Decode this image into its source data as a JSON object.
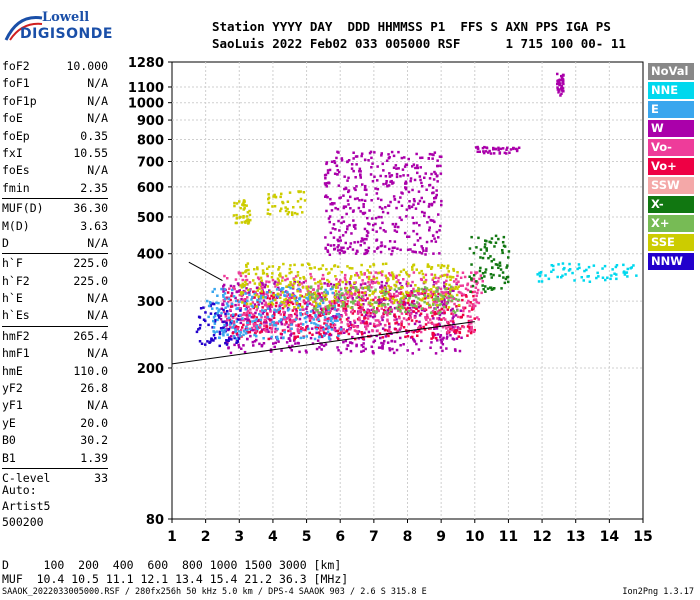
{
  "logo": {
    "line1": "Lowell",
    "line2": "DIGISONDE"
  },
  "header": {
    "line1": "Station YYYY DAY  DDD HHMMSS P1  FFS S AXN PPS IGA PS",
    "line2": "SaoLuis 2022 Feb02 033 005000 RSF      1 715 100 00- 11"
  },
  "params": {
    "group1": [
      {
        "label": "foF2",
        "value": "10.000"
      },
      {
        "label": "foF1",
        "value": "N/A"
      },
      {
        "label": "foF1p",
        "value": "N/A"
      },
      {
        "label": "foE",
        "value": "N/A"
      },
      {
        "label": "foEp",
        "value": "0.35"
      },
      {
        "label": "fxI",
        "value": "10.55"
      },
      {
        "label": "foEs",
        "value": "N/A"
      },
      {
        "label": "fmin",
        "value": "2.35"
      }
    ],
    "group2": [
      {
        "label": "MUF(D)",
        "value": "36.30"
      },
      {
        "label": "M(D)",
        "value": "3.63"
      },
      {
        "label": "D",
        "value": "N/A"
      }
    ],
    "group3": [
      {
        "label": "h`F",
        "value": "225.0"
      },
      {
        "label": "h`F2",
        "value": "225.0"
      },
      {
        "label": "h`E",
        "value": "N/A"
      },
      {
        "label": "h`Es",
        "value": "N/A"
      }
    ],
    "group4": [
      {
        "label": "hmF2",
        "value": "265.4"
      },
      {
        "label": "hmF1",
        "value": "N/A"
      },
      {
        "label": "hmE",
        "value": "110.0"
      },
      {
        "label": "yF2",
        "value": "26.8"
      },
      {
        "label": "yF1",
        "value": "N/A"
      },
      {
        "label": "yE",
        "value": "20.0"
      },
      {
        "label": "B0",
        "value": "30.2"
      },
      {
        "label": "B1",
        "value": "1.39"
      }
    ],
    "group5": [
      {
        "label": "C-level",
        "value": "33"
      }
    ]
  },
  "auto": {
    "line1": "Auto:",
    "line2": "Artist5",
    "line3": "500200"
  },
  "legend": [
    {
      "label": "NoVal",
      "color": "#888888"
    },
    {
      "label": "NNE",
      "color": "#00d8ee"
    },
    {
      "label": "E",
      "color": "#3aa6ee"
    },
    {
      "label": "W",
      "color": "#aa00aa"
    },
    {
      "label": "Vo-",
      "color": "#ee3c9a"
    },
    {
      "label": "Vo+",
      "color": "#ee0044"
    },
    {
      "label": "SSW",
      "color": "#f4a8a8"
    },
    {
      "label": "X-",
      "color": "#117711"
    },
    {
      "label": "X+",
      "color": "#77bb55"
    },
    {
      "label": "SSE",
      "color": "#cccc00"
    },
    {
      "label": "NNW",
      "color": "#2200cc"
    }
  ],
  "footer": {
    "line1": "D     100  200  400  600  800 1000 1500 3000 [km]",
    "line2": "MUF  10.4 10.5 11.1 12.1 13.4 15.4 21.2 36.3 [MHz]",
    "status": "SAAOK_2022033005000.RSF / 280fx256h 50 kHz 5.0 km / DPS-4 SAAOK 903 / 2.6 S 315.8 E",
    "version": "Ion2Png 1.3.17"
  },
  "chart_data": {
    "type": "scatter",
    "xlim": [
      1,
      15
    ],
    "ylim": [
      80,
      1280
    ],
    "y_scale": "log",
    "x_ticks": [
      "1",
      "2",
      "3",
      "4",
      "5",
      "6",
      "7",
      "8",
      "9",
      "10",
      "11",
      "12",
      "13",
      "14",
      "15"
    ],
    "y_ticks": [
      "80",
      "200",
      "300",
      "400",
      "500",
      "600",
      "700",
      "800",
      "900",
      "1000",
      "1100",
      "1280"
    ],
    "grid": true,
    "legend_position": "right",
    "clusters": [
      {
        "channel": "W",
        "x": [
          2.4,
          9.6
        ],
        "y": [
          220,
          340
        ]
      },
      {
        "channel": "Vo+",
        "x": [
          2.6,
          10.0
        ],
        "y": [
          240,
          320
        ]
      },
      {
        "channel": "Vo-",
        "x": [
          2.5,
          10.2
        ],
        "y": [
          250,
          360
        ]
      },
      {
        "channel": "NNW",
        "x": [
          1.7,
          3.0
        ],
        "y": [
          230,
          300
        ]
      },
      {
        "channel": "E",
        "x": [
          2.0,
          6.0
        ],
        "y": [
          240,
          330
        ]
      },
      {
        "channel": "SSE",
        "x": [
          3.0,
          9.5
        ],
        "y": [
          290,
          380
        ]
      },
      {
        "channel": "X+",
        "x": [
          5.0,
          9.5
        ],
        "y": [
          280,
          330
        ]
      },
      {
        "channel": "X-",
        "x": [
          9.8,
          11.0
        ],
        "y": [
          320,
          450
        ]
      },
      {
        "channel": "NNE",
        "x": [
          11.8,
          14.8
        ],
        "y": [
          340,
          380
        ]
      },
      {
        "channel": "SSE",
        "x": [
          3.8,
          5.0
        ],
        "y": [
          510,
          590
        ]
      },
      {
        "channel": "SSE",
        "x": [
          2.8,
          3.3
        ],
        "y": [
          480,
          560
        ]
      },
      {
        "channel": "W",
        "x": [
          10.0,
          11.3
        ],
        "y": [
          740,
          770
        ]
      },
      {
        "channel": "W",
        "x": [
          12.4,
          12.6
        ],
        "y": [
          1050,
          1200
        ]
      },
      {
        "channel": "W",
        "x": [
          5.5,
          9.0
        ],
        "y": [
          400,
          750
        ]
      }
    ],
    "traces": [
      {
        "name": "fit1",
        "x": [
          1,
          10
        ],
        "y": [
          205,
          265
        ]
      },
      {
        "name": "fit2",
        "x": [
          1.5,
          2.5
        ],
        "y": [
          380,
          340
        ]
      }
    ]
  }
}
